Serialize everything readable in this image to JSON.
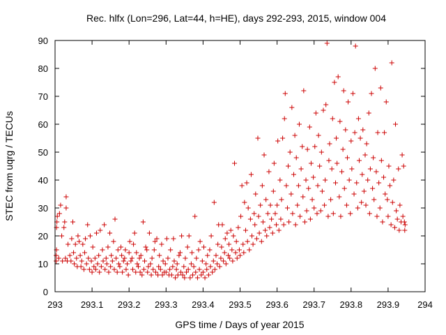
{
  "chart_data": {
    "type": "scatter",
    "title": "Rec. hlfx (Lon=296, Lat=44, h=HE), days 292-293, 2015, window 004",
    "xlabel": "GPS time / Days of year 2015",
    "ylabel": "STEC from uqrg / TECUs",
    "xlim": [
      293,
      294
    ],
    "ylim": [
      0,
      90
    ],
    "xticks": [
      "293",
      "293.1",
      "293.2",
      "293.3",
      "293.4",
      "293.5",
      "293.6",
      "293.7",
      "293.8",
      "293.9",
      "294"
    ],
    "yticks": [
      "0",
      "10",
      "20",
      "30",
      "40",
      "50",
      "60",
      "70",
      "80",
      "90"
    ],
    "grid": false,
    "legend": "none",
    "marker": "plus",
    "color": "#cc0000",
    "points": [
      [
        293.003,
        11
      ],
      [
        293.003,
        13
      ],
      [
        293.004,
        15
      ],
      [
        293.004,
        23
      ],
      [
        293.005,
        25
      ],
      [
        293.006,
        27
      ],
      [
        293.01,
        12
      ],
      [
        293.012,
        28
      ],
      [
        293.015,
        31
      ],
      [
        293.018,
        20
      ],
      [
        293.02,
        11
      ],
      [
        293.024,
        23
      ],
      [
        293.026,
        25
      ],
      [
        293.028,
        12
      ],
      [
        293.03,
        34
      ],
      [
        293.03,
        30
      ],
      [
        293.033,
        11
      ],
      [
        293.035,
        17
      ],
      [
        293.04,
        13
      ],
      [
        293.043,
        11
      ],
      [
        293.045,
        19
      ],
      [
        293.048,
        25
      ],
      [
        293.05,
        14
      ],
      [
        293.052,
        10
      ],
      [
        293.055,
        17
      ],
      [
        293.058,
        12
      ],
      [
        293.06,
        9
      ],
      [
        293.062,
        20
      ],
      [
        293.065,
        18
      ],
      [
        293.068,
        13
      ],
      [
        293.07,
        9
      ],
      [
        293.072,
        11
      ],
      [
        293.075,
        17
      ],
      [
        293.078,
        8
      ],
      [
        293.08,
        14
      ],
      [
        293.082,
        19
      ],
      [
        293.085,
        10
      ],
      [
        293.088,
        24
      ],
      [
        293.09,
        12
      ],
      [
        293.093,
        8
      ],
      [
        293.095,
        20
      ],
      [
        293.098,
        11
      ],
      [
        293.1,
        7
      ],
      [
        293.102,
        16
      ],
      [
        293.105,
        9
      ],
      [
        293.108,
        12
      ],
      [
        293.11,
        8
      ],
      [
        293.112,
        21
      ],
      [
        293.115,
        10
      ],
      [
        293.118,
        13
      ],
      [
        293.12,
        7
      ],
      [
        293.122,
        22
      ],
      [
        293.125,
        9
      ],
      [
        293.128,
        15
      ],
      [
        293.13,
        11
      ],
      [
        293.133,
        24
      ],
      [
        293.135,
        8
      ],
      [
        293.138,
        12
      ],
      [
        293.14,
        10
      ],
      [
        293.143,
        16
      ],
      [
        293.145,
        7
      ],
      [
        293.148,
        21
      ],
      [
        293.15,
        9
      ],
      [
        293.152,
        13
      ],
      [
        293.155,
        11
      ],
      [
        293.158,
        18
      ],
      [
        293.16,
        8
      ],
      [
        293.162,
        26
      ],
      [
        293.165,
        12
      ],
      [
        293.168,
        7
      ],
      [
        293.17,
        15
      ],
      [
        293.172,
        10
      ],
      [
        293.175,
        9
      ],
      [
        293.178,
        16
      ],
      [
        293.18,
        13
      ],
      [
        293.182,
        7
      ],
      [
        293.185,
        11
      ],
      [
        293.188,
        12
      ],
      [
        293.19,
        15
      ],
      [
        293.192,
        8
      ],
      [
        293.195,
        10
      ],
      [
        293.198,
        6
      ],
      [
        293.2,
        14
      ],
      [
        293.202,
        18
      ],
      [
        293.205,
        11
      ],
      [
        293.208,
        12
      ],
      [
        293.21,
        8
      ],
      [
        293.212,
        17
      ],
      [
        293.215,
        21
      ],
      [
        293.218,
        7
      ],
      [
        293.22,
        14
      ],
      [
        293.222,
        10
      ],
      [
        293.225,
        9
      ],
      [
        293.228,
        12
      ],
      [
        293.23,
        7
      ],
      [
        293.232,
        13
      ],
      [
        293.235,
        6
      ],
      [
        293.238,
        25
      ],
      [
        293.24,
        8
      ],
      [
        293.242,
        11
      ],
      [
        293.245,
        16
      ],
      [
        293.248,
        15
      ],
      [
        293.25,
        7
      ],
      [
        293.252,
        9
      ],
      [
        293.255,
        21
      ],
      [
        293.258,
        10
      ],
      [
        293.26,
        6
      ],
      [
        293.262,
        12
      ],
      [
        293.265,
        8
      ],
      [
        293.268,
        15
      ],
      [
        293.27,
        18
      ],
      [
        293.272,
        7
      ],
      [
        293.275,
        19
      ],
      [
        293.278,
        6
      ],
      [
        293.28,
        9
      ],
      [
        293.282,
        13
      ],
      [
        293.285,
        8
      ],
      [
        293.288,
        17
      ],
      [
        293.29,
        6
      ],
      [
        293.292,
        11
      ],
      [
        293.295,
        7
      ],
      [
        293.298,
        10
      ],
      [
        293.3,
        7
      ],
      [
        293.302,
        19
      ],
      [
        293.305,
        12
      ],
      [
        293.308,
        6
      ],
      [
        293.31,
        8
      ],
      [
        293.312,
        15
      ],
      [
        293.315,
        6
      ],
      [
        293.318,
        9
      ],
      [
        293.32,
        19
      ],
      [
        293.322,
        11
      ],
      [
        293.325,
        5
      ],
      [
        293.328,
        8
      ],
      [
        293.33,
        10
      ],
      [
        293.332,
        6
      ],
      [
        293.335,
        13
      ],
      [
        293.338,
        14
      ],
      [
        293.34,
        7
      ],
      [
        293.342,
        20
      ],
      [
        293.345,
        6
      ],
      [
        293.348,
        9
      ],
      [
        293.35,
        5
      ],
      [
        293.352,
        12
      ],
      [
        293.355,
        7
      ],
      [
        293.358,
        16
      ],
      [
        293.36,
        8
      ],
      [
        293.362,
        20
      ],
      [
        293.365,
        5
      ],
      [
        293.368,
        10
      ],
      [
        293.37,
        14
      ],
      [
        293.372,
        6
      ],
      [
        293.375,
        9
      ],
      [
        293.378,
        27
      ],
      [
        293.38,
        7
      ],
      [
        293.382,
        12
      ],
      [
        293.385,
        5
      ],
      [
        293.388,
        15
      ],
      [
        293.39,
        8
      ],
      [
        293.392,
        18
      ],
      [
        293.395,
        6
      ],
      [
        293.398,
        11
      ],
      [
        293.4,
        7
      ],
      [
        293.402,
        16
      ],
      [
        293.405,
        5
      ],
      [
        293.408,
        10
      ],
      [
        293.41,
        8
      ],
      [
        293.412,
        13
      ],
      [
        293.415,
        6
      ],
      [
        293.418,
        15
      ],
      [
        293.42,
        9
      ],
      [
        293.422,
        20
      ],
      [
        293.425,
        7
      ],
      [
        293.428,
        11
      ],
      [
        293.43,
        32
      ],
      [
        293.432,
        8
      ],
      [
        293.435,
        13
      ],
      [
        293.438,
        10
      ],
      [
        293.44,
        17
      ],
      [
        293.442,
        24
      ],
      [
        293.445,
        9
      ],
      [
        293.448,
        12
      ],
      [
        293.45,
        16
      ],
      [
        293.452,
        24
      ],
      [
        293.455,
        11
      ],
      [
        293.458,
        14
      ],
      [
        293.46,
        19
      ],
      [
        293.462,
        10
      ],
      [
        293.465,
        21
      ],
      [
        293.468,
        13
      ],
      [
        293.47,
        17
      ],
      [
        293.472,
        12
      ],
      [
        293.475,
        22
      ],
      [
        293.478,
        15
      ],
      [
        293.48,
        11
      ],
      [
        293.482,
        20
      ],
      [
        293.485,
        46
      ],
      [
        293.488,
        14
      ],
      [
        293.49,
        18
      ],
      [
        293.492,
        12
      ],
      [
        293.495,
        23
      ],
      [
        293.498,
        15
      ],
      [
        293.5,
        13
      ],
      [
        293.502,
        27
      ],
      [
        293.505,
        38
      ],
      [
        293.508,
        17
      ],
      [
        293.51,
        14
      ],
      [
        293.512,
        32
      ],
      [
        293.515,
        22
      ],
      [
        293.518,
        39
      ],
      [
        293.52,
        18
      ],
      [
        293.522,
        30
      ],
      [
        293.525,
        15
      ],
      [
        293.528,
        26
      ],
      [
        293.53,
        42
      ],
      [
        293.532,
        20
      ],
      [
        293.535,
        17
      ],
      [
        293.538,
        28
      ],
      [
        293.54,
        24
      ],
      [
        293.542,
        35
      ],
      [
        293.545,
        19
      ],
      [
        293.548,
        55
      ],
      [
        293.55,
        27
      ],
      [
        293.552,
        21
      ],
      [
        293.555,
        31
      ],
      [
        293.558,
        18
      ],
      [
        293.56,
        38
      ],
      [
        293.562,
        25
      ],
      [
        293.565,
        49
      ],
      [
        293.568,
        22
      ],
      [
        293.57,
        33
      ],
      [
        293.572,
        20
      ],
      [
        293.575,
        28
      ],
      [
        293.578,
        43
      ],
      [
        293.58,
        23
      ],
      [
        293.582,
        31
      ],
      [
        293.585,
        26
      ],
      [
        293.588,
        21
      ],
      [
        293.59,
        36
      ],
      [
        293.592,
        46
      ],
      [
        293.595,
        28
      ],
      [
        293.598,
        24
      ],
      [
        293.6,
        31
      ],
      [
        293.602,
        54
      ],
      [
        293.605,
        22
      ],
      [
        293.608,
        40
      ],
      [
        293.61,
        26
      ],
      [
        293.612,
        33
      ],
      [
        293.615,
        55
      ],
      [
        293.618,
        24
      ],
      [
        293.62,
        62
      ],
      [
        293.622,
        71
      ],
      [
        293.625,
        38
      ],
      [
        293.628,
        30
      ],
      [
        293.63,
        45
      ],
      [
        293.632,
        25
      ],
      [
        293.635,
        50
      ],
      [
        293.638,
        35
      ],
      [
        293.64,
        66
      ],
      [
        293.642,
        28
      ],
      [
        293.645,
        42
      ],
      [
        293.648,
        56
      ],
      [
        293.65,
        24
      ],
      [
        293.652,
        48
      ],
      [
        293.655,
        31
      ],
      [
        293.658,
        38
      ],
      [
        293.66,
        60
      ],
      [
        293.662,
        27
      ],
      [
        293.665,
        44
      ],
      [
        293.668,
        52
      ],
      [
        293.67,
        34
      ],
      [
        293.672,
        72
      ],
      [
        293.675,
        25
      ],
      [
        293.678,
        40
      ],
      [
        293.68,
        29
      ],
      [
        293.682,
        51
      ],
      [
        293.685,
        37
      ],
      [
        293.688,
        59
      ],
      [
        293.69,
        26
      ],
      [
        293.692,
        46
      ],
      [
        293.695,
        33
      ],
      [
        293.698,
        41
      ],
      [
        293.7,
        30
      ],
      [
        293.702,
        52
      ],
      [
        293.705,
        64
      ],
      [
        293.708,
        28
      ],
      [
        293.71,
        38
      ],
      [
        293.712,
        56
      ],
      [
        293.715,
        45
      ],
      [
        293.718,
        29
      ],
      [
        293.72,
        50
      ],
      [
        293.722,
        36
      ],
      [
        293.725,
        65
      ],
      [
        293.728,
        31
      ],
      [
        293.73,
        40
      ],
      [
        293.732,
        67
      ],
      [
        293.735,
        89
      ],
      [
        293.738,
        27
      ],
      [
        293.74,
        47
      ],
      [
        293.742,
        53
      ],
      [
        293.745,
        33
      ],
      [
        293.748,
        44
      ],
      [
        293.75,
        62
      ],
      [
        293.752,
        28
      ],
      [
        293.755,
        75
      ],
      [
        293.758,
        39
      ],
      [
        293.76,
        55
      ],
      [
        293.762,
        46
      ],
      [
        293.765,
        77
      ],
      [
        293.768,
        34
      ],
      [
        293.77,
        61
      ],
      [
        293.772,
        27
      ],
      [
        293.775,
        43
      ],
      [
        293.778,
        51
      ],
      [
        293.78,
        72
      ],
      [
        293.782,
        37
      ],
      [
        293.785,
        58
      ],
      [
        293.788,
        31
      ],
      [
        293.79,
        48
      ],
      [
        293.792,
        68
      ],
      [
        293.795,
        40
      ],
      [
        293.798,
        28
      ],
      [
        293.8,
        54
      ],
      [
        293.802,
        44
      ],
      [
        293.805,
        71
      ],
      [
        293.808,
        35
      ],
      [
        293.81,
        57
      ],
      [
        293.812,
        88
      ],
      [
        293.815,
        39
      ],
      [
        293.818,
        30
      ],
      [
        293.82,
        62
      ],
      [
        293.822,
        47
      ],
      [
        293.825,
        55
      ],
      [
        293.828,
        32
      ],
      [
        293.83,
        42
      ],
      [
        293.832,
        58
      ],
      [
        293.835,
        36
      ],
      [
        293.838,
        49
      ],
      [
        293.84,
        31
      ],
      [
        293.842,
        53
      ],
      [
        293.845,
        40
      ],
      [
        293.848,
        64
      ],
      [
        293.85,
        28
      ],
      [
        293.852,
        44
      ],
      [
        293.855,
        71
      ],
      [
        293.858,
        37
      ],
      [
        293.86,
        48
      ],
      [
        293.862,
        33
      ],
      [
        293.865,
        80
      ],
      [
        293.868,
        43
      ],
      [
        293.87,
        27
      ],
      [
        293.872,
        57
      ],
      [
        293.875,
        39
      ],
      [
        293.878,
        30
      ],
      [
        293.88,
        73
      ],
      [
        293.882,
        47
      ],
      [
        293.885,
        25
      ],
      [
        293.888,
        41
      ],
      [
        293.89,
        57
      ],
      [
        293.892,
        35
      ],
      [
        293.895,
        68
      ],
      [
        293.898,
        33
      ],
      [
        293.9,
        27
      ],
      [
        293.902,
        45
      ],
      [
        293.905,
        38
      ],
      [
        293.908,
        24
      ],
      [
        293.91,
        82
      ],
      [
        293.912,
        32
      ],
      [
        293.915,
        40
      ],
      [
        293.918,
        23
      ],
      [
        293.92,
        60
      ],
      [
        293.922,
        29
      ],
      [
        293.925,
        26
      ],
      [
        293.928,
        44
      ],
      [
        293.93,
        22
      ],
      [
        293.932,
        31
      ],
      [
        293.935,
        25
      ],
      [
        293.938,
        49
      ],
      [
        293.94,
        27
      ],
      [
        293.942,
        45
      ],
      [
        293.944,
        25
      ],
      [
        293.945,
        22
      ],
      [
        293.946,
        24
      ]
    ]
  }
}
